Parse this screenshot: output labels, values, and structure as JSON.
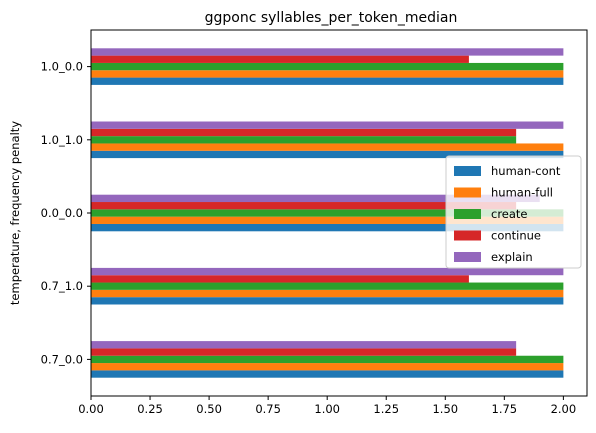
{
  "chart_data": {
    "type": "bar",
    "orientation": "horizontal",
    "title": "ggponc syllables_per_token_median",
    "xlabel": "",
    "ylabel": "temperature, frequency penalty",
    "categories": [
      "0.7_0.0",
      "0.7_1.0",
      "0.0_0.0",
      "1.0_1.0",
      "1.0_0.0"
    ],
    "x_ticks": [
      "0.00",
      "0.25",
      "0.50",
      "0.75",
      "1.00",
      "1.25",
      "1.50",
      "1.75",
      "2.00"
    ],
    "xlim": [
      0,
      2.1
    ],
    "grid": false,
    "legend_position": "center-right",
    "series": [
      {
        "name": "human-cont",
        "color": "#1f77b4",
        "values": [
          2.0,
          2.0,
          2.0,
          2.0,
          2.0
        ]
      },
      {
        "name": "human-full",
        "color": "#ff7f0e",
        "values": [
          2.0,
          2.0,
          2.0,
          2.0,
          2.0
        ]
      },
      {
        "name": "create",
        "color": "#2ca02c",
        "values": [
          2.0,
          2.0,
          2.0,
          1.8,
          2.0
        ]
      },
      {
        "name": "continue",
        "color": "#d62728",
        "values": [
          1.8,
          1.6,
          1.8,
          1.8,
          1.6
        ]
      },
      {
        "name": "explain",
        "color": "#9467bd",
        "values": [
          1.8,
          2.0,
          1.9,
          2.0,
          2.0
        ]
      }
    ]
  }
}
